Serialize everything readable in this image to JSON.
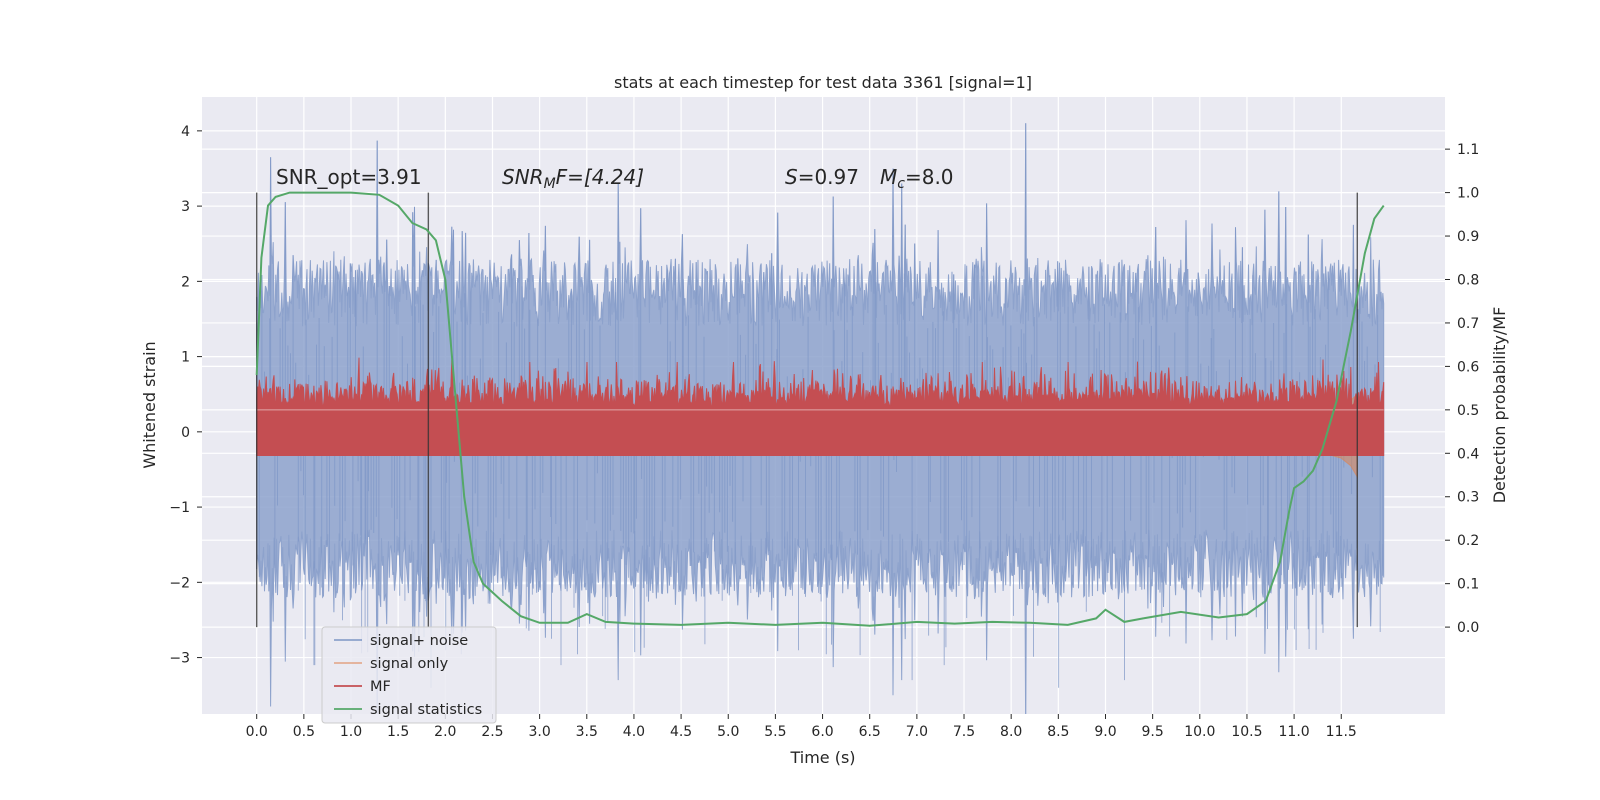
{
  "chart_data": {
    "type": "line",
    "title": "stats at each timestep for test data 3361 [signal=1]",
    "xlabel": "Time (s)",
    "ylabel": "Whitened strain",
    "ylabel_right": "Detection probability/MF",
    "xlim": [
      -0.58,
      12.6
    ],
    "ylim": [
      -3.75,
      4.45
    ],
    "ylim_right": [
      -0.2,
      1.22
    ],
    "x_ticks": [
      "0.0",
      "0.5",
      "1.0",
      "1.5",
      "2.0",
      "2.5",
      "3.0",
      "3.5",
      "4.0",
      "4.5",
      "5.0",
      "5.5",
      "6.0",
      "6.5",
      "7.0",
      "7.5",
      "8.0",
      "8.5",
      "9.0",
      "9.5",
      "10.0",
      "10.5",
      "11.0",
      "11.5"
    ],
    "y_ticks_left": [
      "−3",
      "−2",
      "−1",
      "0",
      "1",
      "2",
      "3",
      "4"
    ],
    "y_ticks_right": [
      "0.0",
      "0.1",
      "0.2",
      "0.3",
      "0.4",
      "0.5",
      "0.6",
      "0.7",
      "0.8",
      "0.9",
      "1.0",
      "1.1"
    ],
    "grid": true,
    "legend_position": "lower-left",
    "annotations": {
      "snr_opt": "SNR_opt=3.91",
      "snr_mf_sym": "SNR",
      "snr_mf_sub": "M",
      "snr_mf_rest": "F=[4.24]",
      "s_sym": "S",
      "s_rest": "=0.97",
      "mc_sym": "M",
      "mc_sub": "c",
      "mc_rest": "=8.0"
    },
    "vertical_markers": [
      0.0,
      1.82,
      11.67
    ],
    "series": [
      {
        "name": "signal+ noise",
        "color": "#4c72b0",
        "axis": "left",
        "style": "noise band",
        "mean": 0.0,
        "typical_extent": [
          -2.2,
          2.3
        ],
        "peaks": [
          [
            0.15,
            3.65
          ],
          [
            1.28,
            3.87
          ],
          [
            8.15,
            4.1
          ],
          [
            6.75,
            3.5
          ],
          [
            8.5,
            -3.4
          ],
          [
            9.2,
            -3.3
          ],
          [
            6.95,
            -3.3
          ],
          [
            1.85,
            -3.4
          ]
        ]
      },
      {
        "name": "signal only",
        "color": "#dd8452",
        "axis": "left",
        "x": [
          0.0,
          2.0,
          4.0,
          6.0,
          8.0,
          9.0,
          10.0,
          10.5,
          11.0,
          11.3,
          11.5,
          11.6,
          11.67
        ],
        "upper": [
          0.04,
          0.05,
          0.06,
          0.07,
          0.09,
          0.11,
          0.14,
          0.17,
          0.22,
          0.28,
          0.35,
          0.42,
          0.5
        ],
        "lower": [
          -0.04,
          -0.05,
          -0.06,
          -0.07,
          -0.09,
          -0.11,
          -0.14,
          -0.17,
          -0.22,
          -0.28,
          -0.35,
          -0.45,
          -0.6
        ]
      },
      {
        "name": "MF",
        "color": "#c44e52",
        "axis": "right",
        "style": "noise band",
        "baseline": 0.5,
        "typical_range": [
          0.44,
          0.57
        ],
        "max": 0.61
      },
      {
        "name": "signal statistics",
        "color": "#55a868",
        "axis": "right",
        "x": [
          0.0,
          0.05,
          0.12,
          0.2,
          0.35,
          0.6,
          1.0,
          1.3,
          1.5,
          1.65,
          1.8,
          1.9,
          2.0,
          2.1,
          2.2,
          2.3,
          2.4,
          2.6,
          2.8,
          3.0,
          3.3,
          3.5,
          3.7,
          4.0,
          4.5,
          5.0,
          5.5,
          6.0,
          6.5,
          7.0,
          7.4,
          7.8,
          8.2,
          8.6,
          8.9,
          9.0,
          9.2,
          9.4,
          9.8,
          10.2,
          10.5,
          10.7,
          10.85,
          10.95,
          11.0,
          11.1,
          11.2,
          11.3,
          11.45,
          11.6,
          11.75,
          11.85,
          11.95
        ],
        "values": [
          0.58,
          0.85,
          0.97,
          0.99,
          1.0,
          1.0,
          1.0,
          0.995,
          0.97,
          0.93,
          0.915,
          0.89,
          0.8,
          0.55,
          0.3,
          0.15,
          0.1,
          0.06,
          0.025,
          0.01,
          0.01,
          0.03,
          0.012,
          0.008,
          0.005,
          0.01,
          0.005,
          0.01,
          0.003,
          0.012,
          0.008,
          0.012,
          0.01,
          0.005,
          0.02,
          0.04,
          0.012,
          0.02,
          0.035,
          0.022,
          0.03,
          0.06,
          0.15,
          0.27,
          0.32,
          0.335,
          0.36,
          0.41,
          0.52,
          0.68,
          0.86,
          0.94,
          0.97
        ]
      }
    ]
  }
}
